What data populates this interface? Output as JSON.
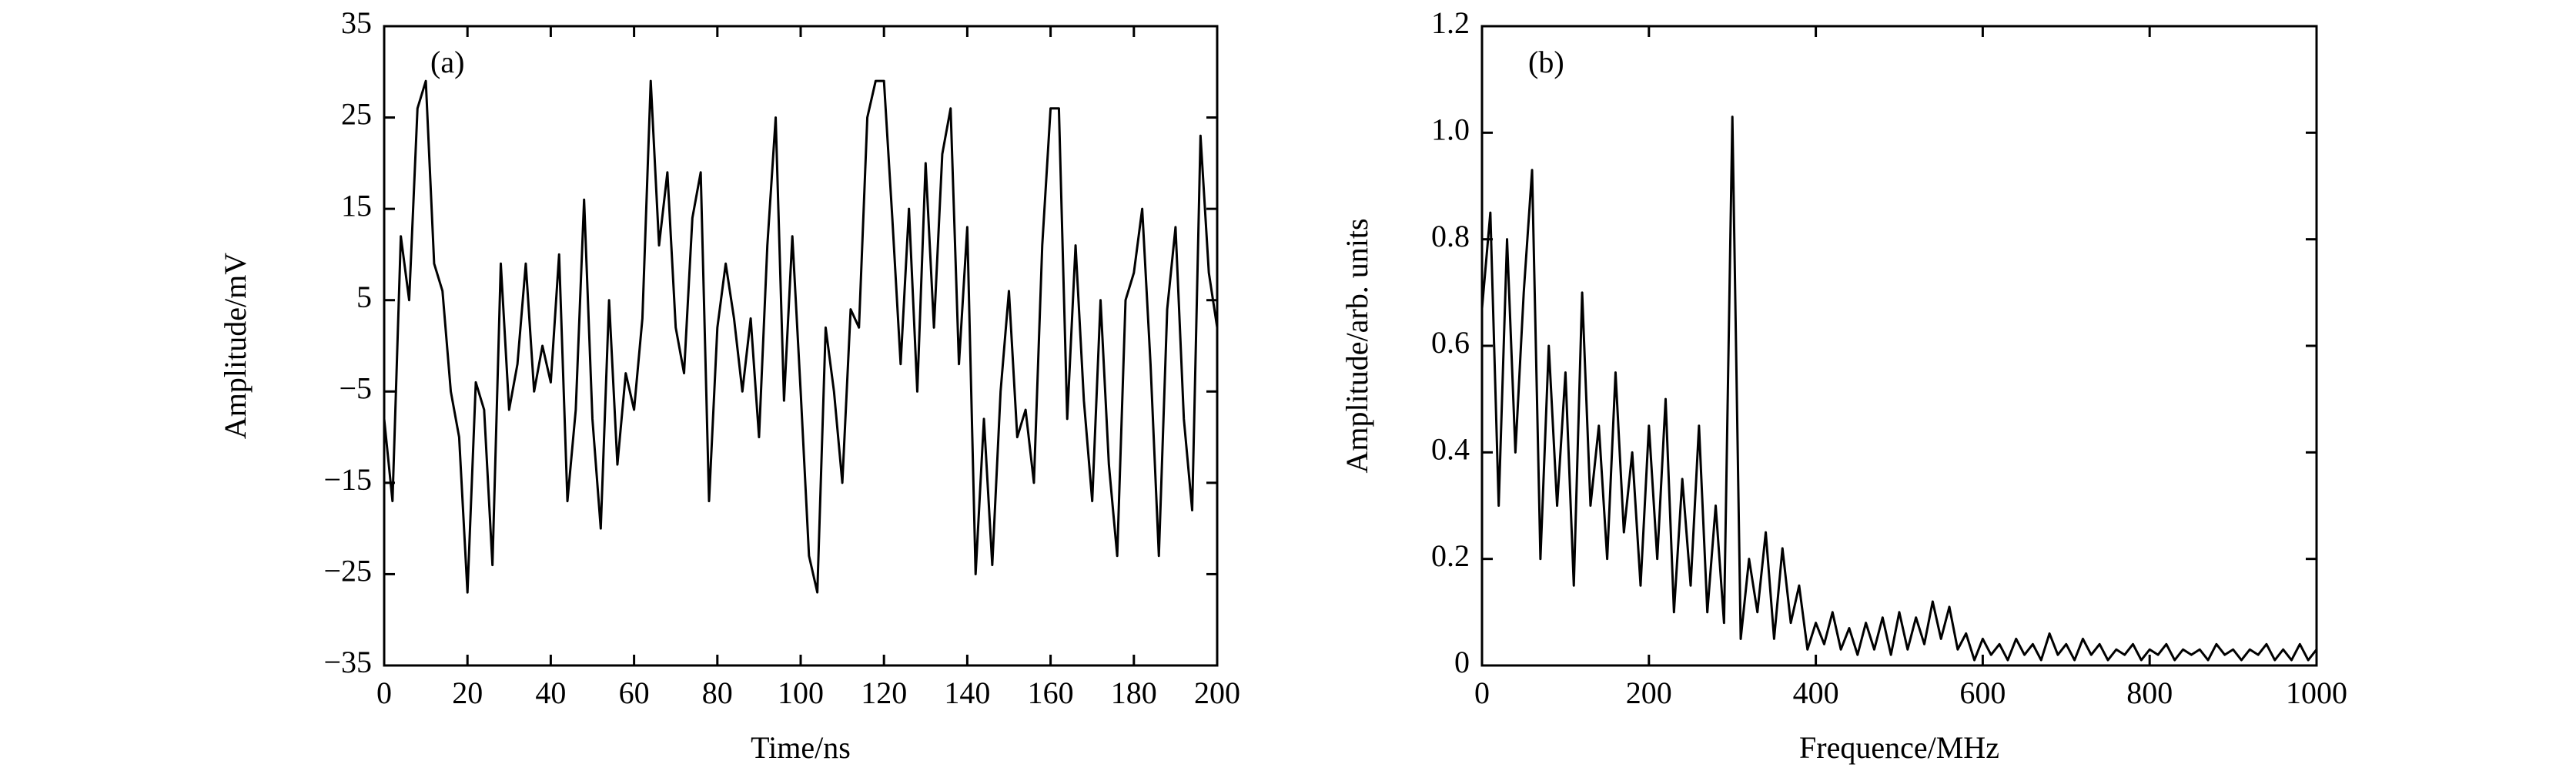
{
  "chart_data": [
    {
      "type": "line",
      "annotation": "(a)",
      "x_label": "Time/ns",
      "y_label": "Amplitude/mV",
      "color": "#000000",
      "xlim": [
        0,
        200
      ],
      "ylim": [
        -35,
        35
      ],
      "xticks": [
        0,
        20,
        40,
        60,
        80,
        100,
        120,
        140,
        160,
        180,
        200
      ],
      "yticks": [
        {
          "value": -35,
          "label": "−35"
        },
        {
          "value": -25,
          "label": "−25"
        },
        {
          "value": -15,
          "label": "−15"
        },
        {
          "value": -5,
          "label": "−5"
        },
        5,
        15,
        25,
        35
      ],
      "x": [
        0,
        2,
        4,
        6,
        8,
        10,
        12,
        14,
        16,
        18,
        20,
        22,
        24,
        26,
        28,
        30,
        32,
        34,
        36,
        38,
        40,
        42,
        44,
        46,
        48,
        50,
        52,
        54,
        56,
        58,
        60,
        62,
        64,
        66,
        68,
        70,
        72,
        74,
        76,
        78,
        80,
        82,
        84,
        86,
        88,
        90,
        92,
        94,
        96,
        98,
        100,
        102,
        104,
        106,
        108,
        110,
        112,
        114,
        116,
        118,
        120,
        122,
        124,
        126,
        128,
        130,
        132,
        134,
        136,
        138,
        140,
        142,
        144,
        146,
        148,
        150,
        152,
        154,
        156,
        158,
        160,
        162,
        164,
        166,
        168,
        170,
        172,
        174,
        176,
        178,
        180,
        182,
        184,
        186,
        188,
        190,
        192,
        194,
        196,
        198,
        200
      ],
      "values": [
        -8,
        -17,
        12,
        5,
        26,
        29,
        9,
        6,
        -5,
        -10,
        -27,
        -4,
        -7,
        -24,
        9,
        -7,
        -2,
        9,
        -5,
        0,
        -4,
        10,
        -17,
        -7,
        16,
        -8,
        -20,
        5,
        -13,
        -3,
        -7,
        3,
        29,
        11,
        19,
        2,
        -3,
        14,
        19,
        -17,
        2,
        9,
        3,
        -5,
        3,
        -10,
        11,
        25,
        -6,
        12,
        -5,
        -23,
        -27,
        2,
        -5,
        -15,
        4,
        2,
        25,
        29,
        29,
        14,
        -2,
        15,
        -5,
        20,
        2,
        21,
        26,
        -2,
        13,
        -25,
        -8,
        -24,
        -5,
        6,
        -10,
        -7,
        -15,
        11,
        26,
        26,
        -8,
        11,
        -6,
        -17,
        5,
        -13,
        -23,
        5,
        8,
        15,
        -2,
        -23,
        4,
        13,
        -8,
        -18,
        23,
        8,
        2
      ]
    },
    {
      "type": "line",
      "annotation": "(b)",
      "x_label": "Frequence/MHz",
      "y_label": "Amplitude/arb. units",
      "color": "#000000",
      "xlim": [
        0,
        1000
      ],
      "ylim": [
        0,
        1.2
      ],
      "xticks": [
        0,
        200,
        400,
        600,
        800,
        1000
      ],
      "yticks": [
        0,
        0.2,
        0.4,
        0.6,
        0.8,
        {
          "value": 1,
          "label": "1.0"
        },
        1.2
      ],
      "x": [
        0,
        10,
        20,
        30,
        40,
        50,
        60,
        70,
        80,
        90,
        100,
        110,
        120,
        130,
        140,
        150,
        160,
        170,
        180,
        190,
        200,
        210,
        220,
        230,
        240,
        250,
        260,
        270,
        280,
        290,
        300,
        310,
        320,
        330,
        340,
        350,
        360,
        370,
        380,
        390,
        400,
        410,
        420,
        430,
        440,
        450,
        460,
        470,
        480,
        490,
        500,
        510,
        520,
        530,
        540,
        550,
        560,
        570,
        580,
        590,
        600,
        610,
        620,
        630,
        640,
        650,
        660,
        670,
        680,
        690,
        700,
        710,
        720,
        730,
        740,
        750,
        760,
        770,
        780,
        790,
        800,
        810,
        820,
        830,
        840,
        850,
        860,
        870,
        880,
        890,
        900,
        910,
        920,
        930,
        940,
        950,
        960,
        970,
        980,
        990,
        1000
      ],
      "values": [
        0.67,
        0.85,
        0.3,
        0.8,
        0.4,
        0.7,
        0.93,
        0.2,
        0.6,
        0.3,
        0.55,
        0.15,
        0.7,
        0.3,
        0.45,
        0.2,
        0.55,
        0.25,
        0.4,
        0.15,
        0.45,
        0.2,
        0.5,
        0.1,
        0.35,
        0.15,
        0.45,
        0.1,
        0.3,
        0.08,
        1.03,
        0.05,
        0.2,
        0.1,
        0.25,
        0.05,
        0.22,
        0.08,
        0.15,
        0.03,
        0.08,
        0.04,
        0.1,
        0.03,
        0.07,
        0.02,
        0.08,
        0.03,
        0.09,
        0.02,
        0.1,
        0.03,
        0.09,
        0.04,
        0.12,
        0.05,
        0.11,
        0.03,
        0.06,
        0.01,
        0.05,
        0.02,
        0.04,
        0.01,
        0.05,
        0.02,
        0.04,
        0.01,
        0.06,
        0.02,
        0.04,
        0.01,
        0.05,
        0.02,
        0.04,
        0.01,
        0.03,
        0.02,
        0.04,
        0.01,
        0.03,
        0.02,
        0.04,
        0.01,
        0.03,
        0.02,
        0.03,
        0.01,
        0.04,
        0.02,
        0.03,
        0.01,
        0.03,
        0.02,
        0.04,
        0.01,
        0.03,
        0.01,
        0.04,
        0.01,
        0.03
      ]
    }
  ]
}
